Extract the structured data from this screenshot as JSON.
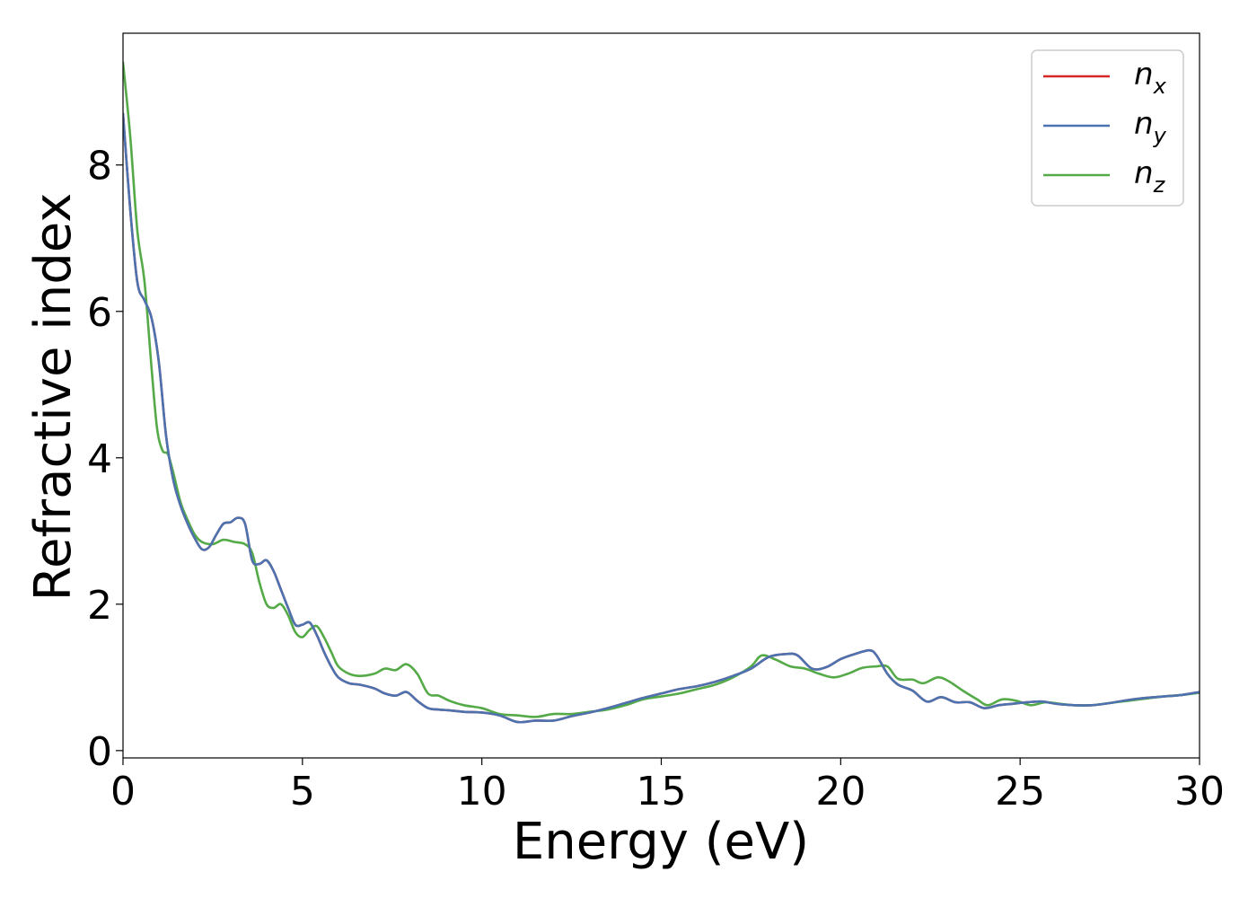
{
  "chart_data": {
    "type": "line",
    "xlabel": "Energy (eV)",
    "ylabel": "Refractive index",
    "xlim": [
      0,
      30
    ],
    "ylim": [
      -0.1,
      9.8
    ],
    "xticks": [
      0,
      5,
      10,
      15,
      20,
      25,
      30
    ],
    "yticks": [
      0,
      2,
      4,
      6,
      8
    ],
    "grid": false,
    "legend_position": "top-right",
    "series": [
      {
        "name": "n_x",
        "label_base": "n",
        "label_sub": "x",
        "color": "#d62728",
        "x": [
          0,
          0.2,
          0.4,
          0.6,
          0.8,
          1.0,
          1.2,
          1.4,
          1.6,
          1.8,
          2.0,
          2.2,
          2.4,
          2.6,
          2.8,
          3.0,
          3.2,
          3.4,
          3.6,
          3.8,
          4.0,
          4.2,
          4.4,
          4.6,
          4.8,
          5.0,
          5.2,
          5.4,
          5.6,
          5.8,
          6.0,
          6.3,
          6.6,
          7.0,
          7.3,
          7.6,
          7.9,
          8.2,
          8.5,
          8.8,
          9.1,
          9.5,
          10.0,
          10.5,
          11.0,
          11.5,
          12.0,
          12.5,
          13.0,
          13.5,
          14.0,
          14.5,
          15.0,
          15.5,
          16.0,
          16.5,
          17.0,
          17.5,
          18.0,
          18.5,
          18.8,
          19.2,
          19.6,
          20.0,
          20.4,
          20.8,
          21.0,
          21.3,
          21.6,
          22.0,
          22.4,
          22.8,
          23.2,
          23.6,
          24.0,
          24.4,
          24.8,
          25.2,
          25.6,
          26.0,
          26.5,
          27.0,
          27.5,
          28.0,
          28.5,
          29.0,
          29.5,
          30.0
        ],
        "y": [
          8.7,
          7.4,
          6.4,
          6.15,
          5.9,
          5.3,
          4.3,
          3.7,
          3.35,
          3.1,
          2.9,
          2.75,
          2.78,
          2.95,
          3.1,
          3.12,
          3.18,
          3.1,
          2.6,
          2.55,
          2.6,
          2.45,
          2.2,
          1.95,
          1.72,
          1.72,
          1.75,
          1.58,
          1.35,
          1.15,
          1.0,
          0.92,
          0.9,
          0.85,
          0.78,
          0.75,
          0.8,
          0.68,
          0.58,
          0.56,
          0.55,
          0.53,
          0.52,
          0.48,
          0.39,
          0.41,
          0.41,
          0.47,
          0.52,
          0.58,
          0.65,
          0.72,
          0.78,
          0.84,
          0.88,
          0.94,
          1.02,
          1.12,
          1.28,
          1.32,
          1.3,
          1.12,
          1.14,
          1.25,
          1.32,
          1.37,
          1.3,
          1.05,
          0.9,
          0.82,
          0.67,
          0.73,
          0.66,
          0.66,
          0.58,
          0.62,
          0.64,
          0.66,
          0.67,
          0.64,
          0.62,
          0.62,
          0.65,
          0.69,
          0.72,
          0.74,
          0.76,
          0.8
        ]
      },
      {
        "name": "n_y",
        "label_base": "n",
        "label_sub": "y",
        "color": "#4c72b0",
        "x": [
          0,
          0.2,
          0.4,
          0.6,
          0.8,
          1.0,
          1.2,
          1.4,
          1.6,
          1.8,
          2.0,
          2.2,
          2.4,
          2.6,
          2.8,
          3.0,
          3.2,
          3.4,
          3.6,
          3.8,
          4.0,
          4.2,
          4.4,
          4.6,
          4.8,
          5.0,
          5.2,
          5.4,
          5.6,
          5.8,
          6.0,
          6.3,
          6.6,
          7.0,
          7.3,
          7.6,
          7.9,
          8.2,
          8.5,
          8.8,
          9.1,
          9.5,
          10.0,
          10.5,
          11.0,
          11.5,
          12.0,
          12.5,
          13.0,
          13.5,
          14.0,
          14.5,
          15.0,
          15.5,
          16.0,
          16.5,
          17.0,
          17.5,
          18.0,
          18.5,
          18.8,
          19.2,
          19.6,
          20.0,
          20.4,
          20.8,
          21.0,
          21.3,
          21.6,
          22.0,
          22.4,
          22.8,
          23.2,
          23.6,
          24.0,
          24.4,
          24.8,
          25.2,
          25.6,
          26.0,
          26.5,
          27.0,
          27.5,
          28.0,
          28.5,
          29.0,
          29.5,
          30.0
        ],
        "y": [
          8.7,
          7.4,
          6.4,
          6.15,
          5.9,
          5.3,
          4.3,
          3.7,
          3.35,
          3.1,
          2.9,
          2.75,
          2.78,
          2.95,
          3.1,
          3.12,
          3.18,
          3.1,
          2.6,
          2.55,
          2.6,
          2.45,
          2.2,
          1.95,
          1.72,
          1.72,
          1.75,
          1.58,
          1.35,
          1.15,
          1.0,
          0.92,
          0.9,
          0.85,
          0.78,
          0.75,
          0.8,
          0.68,
          0.58,
          0.56,
          0.55,
          0.53,
          0.52,
          0.48,
          0.39,
          0.41,
          0.41,
          0.47,
          0.52,
          0.58,
          0.65,
          0.72,
          0.78,
          0.84,
          0.88,
          0.94,
          1.02,
          1.12,
          1.28,
          1.32,
          1.3,
          1.12,
          1.14,
          1.25,
          1.32,
          1.37,
          1.3,
          1.05,
          0.9,
          0.82,
          0.67,
          0.73,
          0.66,
          0.66,
          0.58,
          0.62,
          0.64,
          0.66,
          0.67,
          0.64,
          0.62,
          0.62,
          0.65,
          0.69,
          0.72,
          0.74,
          0.76,
          0.8
        ]
      },
      {
        "name": "n_z",
        "label_base": "n",
        "label_sub": "z",
        "color": "#55aa48",
        "x": [
          0,
          0.2,
          0.4,
          0.6,
          0.8,
          0.95,
          1.1,
          1.25,
          1.4,
          1.6,
          1.8,
          2.0,
          2.2,
          2.5,
          2.8,
          3.1,
          3.4,
          3.6,
          3.8,
          4.0,
          4.2,
          4.4,
          4.6,
          4.8,
          5.0,
          5.2,
          5.4,
          5.6,
          5.8,
          6.0,
          6.3,
          6.6,
          7.0,
          7.3,
          7.6,
          7.9,
          8.2,
          8.5,
          8.8,
          9.1,
          9.5,
          10.0,
          10.5,
          11.0,
          11.5,
          12.0,
          12.5,
          13.0,
          13.5,
          14.0,
          14.5,
          15.0,
          15.5,
          16.0,
          16.5,
          17.0,
          17.5,
          17.8,
          18.2,
          18.6,
          19.0,
          19.4,
          19.8,
          20.2,
          20.6,
          21.0,
          21.3,
          21.6,
          22.0,
          22.3,
          22.7,
          23.0,
          23.4,
          23.8,
          24.1,
          24.5,
          24.9,
          25.3,
          25.7,
          26.1,
          26.5,
          27.0,
          27.5,
          28.0,
          28.5,
          29.0,
          29.5,
          30.0
        ],
        "y": [
          9.4,
          8.4,
          7.1,
          6.4,
          5.2,
          4.4,
          4.1,
          4.05,
          3.8,
          3.4,
          3.15,
          2.95,
          2.85,
          2.82,
          2.88,
          2.85,
          2.82,
          2.7,
          2.3,
          2.0,
          1.95,
          2.0,
          1.85,
          1.62,
          1.55,
          1.65,
          1.7,
          1.55,
          1.35,
          1.15,
          1.05,
          1.02,
          1.05,
          1.12,
          1.1,
          1.18,
          1.05,
          0.78,
          0.75,
          0.68,
          0.62,
          0.58,
          0.5,
          0.48,
          0.46,
          0.5,
          0.5,
          0.53,
          0.56,
          0.62,
          0.7,
          0.74,
          0.78,
          0.84,
          0.9,
          1.0,
          1.15,
          1.3,
          1.24,
          1.15,
          1.12,
          1.05,
          1.0,
          1.05,
          1.13,
          1.15,
          1.15,
          0.98,
          0.97,
          0.92,
          1.0,
          0.95,
          0.82,
          0.7,
          0.62,
          0.7,
          0.68,
          0.62,
          0.66,
          0.64,
          0.62,
          0.62,
          0.65,
          0.68,
          0.71,
          0.74,
          0.76,
          0.79
        ]
      }
    ]
  }
}
